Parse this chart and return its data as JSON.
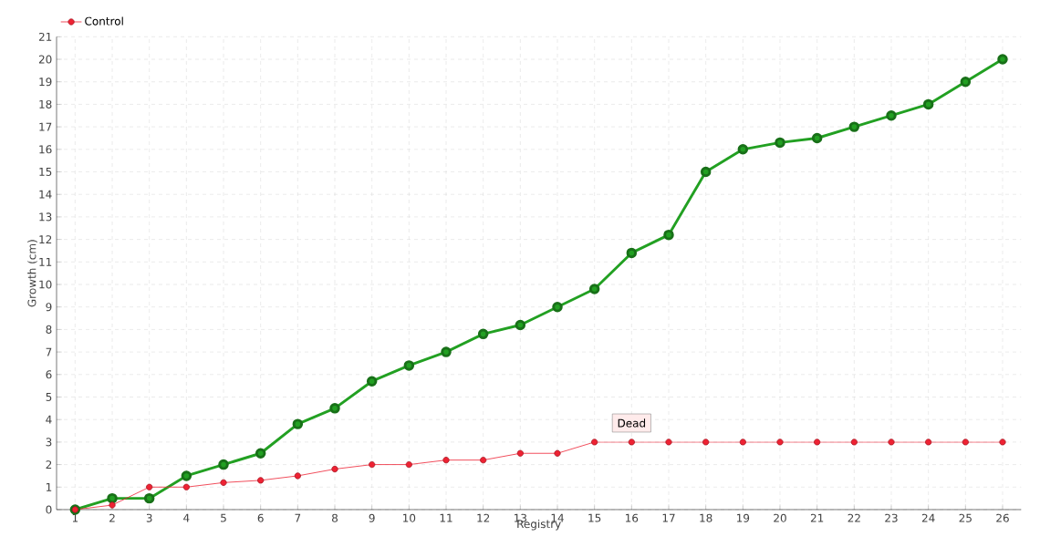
{
  "chart_data": {
    "type": "line",
    "xlabel": "Registry",
    "ylabel": "Growth (cm)",
    "categories": [
      "1",
      "2",
      "3",
      "4",
      "5",
      "6",
      "7",
      "8",
      "9",
      "10",
      "11",
      "12",
      "13",
      "14",
      "15",
      "16",
      "17",
      "18",
      "19",
      "20",
      "21",
      "22",
      "23",
      "24",
      "25",
      "26"
    ],
    "series": [
      {
        "color": "#22a022",
        "values": [
          0,
          0.5,
          0.5,
          1.5,
          2,
          2.5,
          3.8,
          4.5,
          5.7,
          6.4,
          7,
          7.8,
          8.2,
          9,
          9.8,
          11.4,
          12.2,
          15,
          16,
          16.3,
          16.5,
          17,
          17.5,
          18,
          19,
          20
        ]
      },
      {
        "name": "Control",
        "color": "#ee2233",
        "values": [
          0,
          0.2,
          1,
          1,
          1.2,
          1.3,
          1.5,
          1.8,
          2,
          2,
          2.2,
          2.2,
          2.5,
          2.5,
          3,
          3,
          3,
          3,
          3,
          3,
          3,
          3,
          3,
          3,
          3,
          3
        ]
      }
    ],
    "annotations": [
      {
        "text": "Dead",
        "x": "16",
        "y": 3
      }
    ],
    "ylim": [
      0,
      21
    ],
    "yticks": [
      0,
      1,
      2,
      3,
      4,
      5,
      6,
      7,
      8,
      9,
      10,
      11,
      12,
      13,
      14,
      15,
      16,
      17,
      18,
      19,
      20,
      21
    ],
    "grid": true,
    "legend": "top left",
    "marker": "circle",
    "line_style": "solid"
  }
}
